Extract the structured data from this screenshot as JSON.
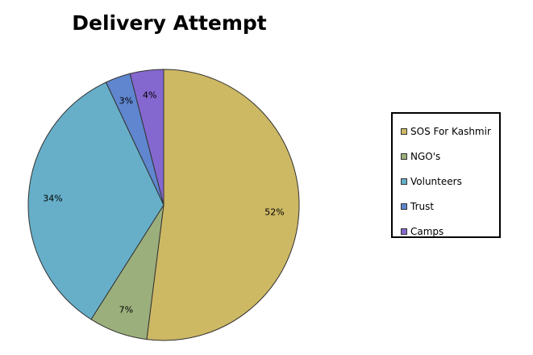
{
  "chart_data": {
    "type": "pie",
    "title": "Delivery Attempt",
    "legend_position": "right",
    "slices": [
      {
        "label": "SOS For Kashmir",
        "value": 52,
        "display": "52%",
        "color": "#CDB864"
      },
      {
        "label": "NGO's",
        "value": 7,
        "display": "7%",
        "color": "#9BAF7C"
      },
      {
        "label": "Volunteers",
        "value": 34,
        "display": "34%",
        "color": "#67AFC9"
      },
      {
        "label": "Trust",
        "value": 3,
        "display": "3%",
        "color": "#5F86CF"
      },
      {
        "label": "Camps",
        "value": 4,
        "display": "4%",
        "color": "#8467CF"
      }
    ]
  }
}
